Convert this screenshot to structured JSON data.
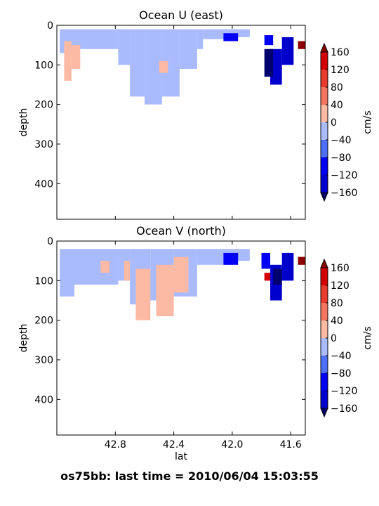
{
  "figure": {
    "suptitle": "os75bb: last time = 2010/06/04 15:03:55"
  },
  "colors": {
    "neg160": "#00006e",
    "neg120": "#0000cd",
    "neg80": "#0000f5",
    "neg40": "#4e6ef5",
    "zero_neg": "#a9bbfd",
    "zero_pos": "#fcb9a4",
    "pos40": "#f37560",
    "pos80": "#e83a2d",
    "pos120": "#d40000",
    "pos160": "#8c0000"
  },
  "chart_data": [
    {
      "type": "heatmap",
      "title": "Ocean U (east)",
      "ylabel": "depth",
      "xlabel": "",
      "x_ticks": [
        "42.8",
        "42.4",
        "42.0",
        "41.6"
      ],
      "y_ticks": [
        "0",
        "100",
        "200",
        "300",
        "400"
      ],
      "xlim": [
        43.2,
        41.5
      ],
      "ylim": [
        490,
        0
      ],
      "colorbar": {
        "label": "cm/s",
        "ticks": [
          "160",
          "120",
          "80",
          "40",
          "0",
          "−40",
          "−80",
          "−120",
          "−160"
        ],
        "levels": [
          -160,
          -120,
          -80,
          -40,
          0,
          40,
          80,
          120,
          160
        ]
      },
      "regions": [
        {
          "value": -20,
          "cells": [
            [
              43.18,
              43.08,
              10,
              70
            ],
            [
              43.08,
              42.78,
              10,
              60
            ],
            [
              42.78,
              42.7,
              10,
              100
            ],
            [
              42.7,
              42.6,
              10,
              180
            ],
            [
              42.6,
              42.48,
              10,
              200
            ],
            [
              42.48,
              42.36,
              10,
              180
            ],
            [
              42.36,
              42.24,
              10,
              110
            ],
            [
              42.24,
              42.2,
              10,
              60
            ],
            [
              42.2,
              42.0,
              10,
              35
            ],
            [
              42.0,
              41.88,
              10,
              30
            ]
          ]
        },
        {
          "value": 20,
          "cells": [
            [
              43.15,
              43.1,
              40,
              140
            ],
            [
              43.1,
              43.04,
              50,
              110
            ],
            [
              42.5,
              42.44,
              90,
              120
            ]
          ]
        },
        {
          "value": -60,
          "cells": [
            [
              42.06,
              41.96,
              20,
              40
            ],
            [
              41.78,
              41.72,
              25,
              50
            ]
          ]
        },
        {
          "value": -120,
          "cells": [
            [
              41.74,
              41.66,
              60,
              150
            ],
            [
              41.66,
              41.58,
              30,
              100
            ]
          ]
        },
        {
          "value": -160,
          "cells": [
            [
              41.78,
              41.72,
              60,
              130
            ]
          ]
        },
        {
          "value": 160,
          "cells": [
            [
              41.55,
              41.5,
              40,
              60
            ]
          ]
        }
      ]
    },
    {
      "type": "heatmap",
      "title": "Ocean V (north)",
      "ylabel": "depth",
      "xlabel": "lat",
      "x_ticks": [
        "42.8",
        "42.4",
        "42.0",
        "41.6"
      ],
      "y_ticks": [
        "0",
        "100",
        "200",
        "300",
        "400"
      ],
      "xlim": [
        43.2,
        41.5
      ],
      "ylim": [
        490,
        0
      ],
      "colorbar": {
        "label": "cm/s",
        "ticks": [
          "160",
          "120",
          "80",
          "40",
          "0",
          "−40",
          "−80",
          "−120",
          "−160"
        ],
        "levels": [
          -160,
          -120,
          -80,
          -40,
          0,
          40,
          80,
          120,
          160
        ]
      },
      "regions": [
        {
          "value": -20,
          "cells": [
            [
              43.18,
              43.08,
              20,
              140
            ],
            [
              43.08,
              42.78,
              20,
              110
            ],
            [
              42.78,
              42.7,
              20,
              100
            ],
            [
              42.7,
              42.56,
              20,
              160
            ],
            [
              42.56,
              42.4,
              20,
              150
            ],
            [
              42.4,
              42.24,
              20,
              140
            ],
            [
              42.24,
              42.0,
              20,
              60
            ],
            [
              42.0,
              41.88,
              20,
              50
            ]
          ]
        },
        {
          "value": 20,
          "cells": [
            [
              42.9,
              42.84,
              50,
              80
            ],
            [
              42.74,
              42.7,
              50,
              100
            ],
            [
              42.66,
              42.56,
              70,
              200
            ],
            [
              42.52,
              42.4,
              60,
              190
            ],
            [
              42.4,
              42.3,
              40,
              130
            ]
          ]
        },
        {
          "value": -60,
          "cells": [
            [
              42.06,
              41.96,
              30,
              60
            ],
            [
              41.8,
              41.74,
              30,
              70
            ]
          ]
        },
        {
          "value": -120,
          "cells": [
            [
              41.74,
              41.66,
              60,
              150
            ],
            [
              41.66,
              41.58,
              30,
              100
            ]
          ]
        },
        {
          "value": -160,
          "cells": [
            [
              41.72,
              41.66,
              70,
              110
            ]
          ]
        },
        {
          "value": 120,
          "cells": [
            [
              41.78,
              41.74,
              80,
              100
            ]
          ]
        },
        {
          "value": 160,
          "cells": [
            [
              41.55,
              41.5,
              40,
              60
            ]
          ]
        }
      ]
    }
  ]
}
